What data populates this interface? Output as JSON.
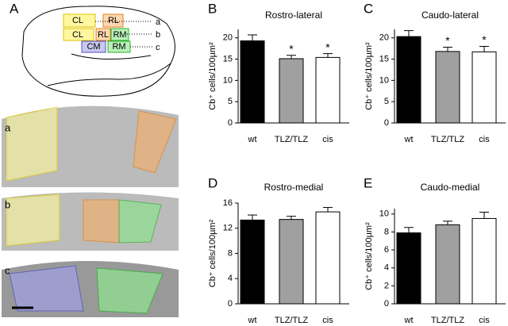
{
  "panel_labels": [
    "A",
    "B",
    "C",
    "D",
    "E"
  ],
  "diagram": {
    "region_labels": [
      "CL",
      "RL",
      "CL",
      "RL",
      "RM",
      "CM",
      "RM"
    ],
    "line_labels": [
      "a",
      "b",
      "c"
    ],
    "section_labels": [
      "a",
      "b",
      "c"
    ]
  },
  "chart_data": [
    {
      "type": "bar",
      "title": "Rostro-lateral",
      "ylabel": "Cb⁺ cells/100µm²",
      "categories": [
        "wt",
        "TLZ/TLZ",
        "cis"
      ],
      "values": [
        19.3,
        15.1,
        15.4
      ],
      "errors": [
        1.4,
        0.8,
        0.9
      ],
      "significance": [
        null,
        "*",
        "*"
      ],
      "colors": [
        "#000000",
        "#a0a0a0",
        "#ffffff"
      ],
      "ylim": [
        0,
        22
      ],
      "yticks": [
        0,
        5,
        10,
        15,
        20
      ]
    },
    {
      "type": "bar",
      "title": "Caudo-lateral",
      "ylabel": "Cb⁺ cells/100µm²",
      "categories": [
        "wt",
        "TLZ/TLZ",
        "cis"
      ],
      "values": [
        20.3,
        16.8,
        16.7
      ],
      "errors": [
        1.4,
        1.0,
        1.3
      ],
      "significance": [
        null,
        "*",
        "*"
      ],
      "colors": [
        "#000000",
        "#a0a0a0",
        "#ffffff"
      ],
      "ylim": [
        0,
        22
      ],
      "yticks": [
        0,
        5,
        10,
        15,
        20
      ]
    },
    {
      "type": "bar",
      "title": "Rostro-medial",
      "ylabel": "Cb⁺ cells/100µm²",
      "categories": [
        "wt",
        "TLZ/TLZ",
        "cis"
      ],
      "values": [
        13.3,
        13.4,
        14.6
      ],
      "errors": [
        0.8,
        0.5,
        0.7
      ],
      "colors": [
        "#000000",
        "#a0a0a0",
        "#ffffff"
      ],
      "ylim": [
        0,
        16
      ],
      "yticks": [
        0,
        4,
        8,
        12,
        16
      ]
    },
    {
      "type": "bar",
      "title": "Caudo-medial",
      "ylabel": "Cb⁺ cells/100µm²",
      "categories": [
        "wt",
        "TLZ/TLZ",
        "cis"
      ],
      "values": [
        7.9,
        8.8,
        9.5
      ],
      "errors": [
        0.6,
        0.4,
        0.7
      ],
      "colors": [
        "#000000",
        "#a0a0a0",
        "#ffffff"
      ],
      "ylim": [
        0,
        10.6
      ],
      "yticks": [
        0,
        2,
        4,
        6,
        8,
        10
      ]
    }
  ]
}
